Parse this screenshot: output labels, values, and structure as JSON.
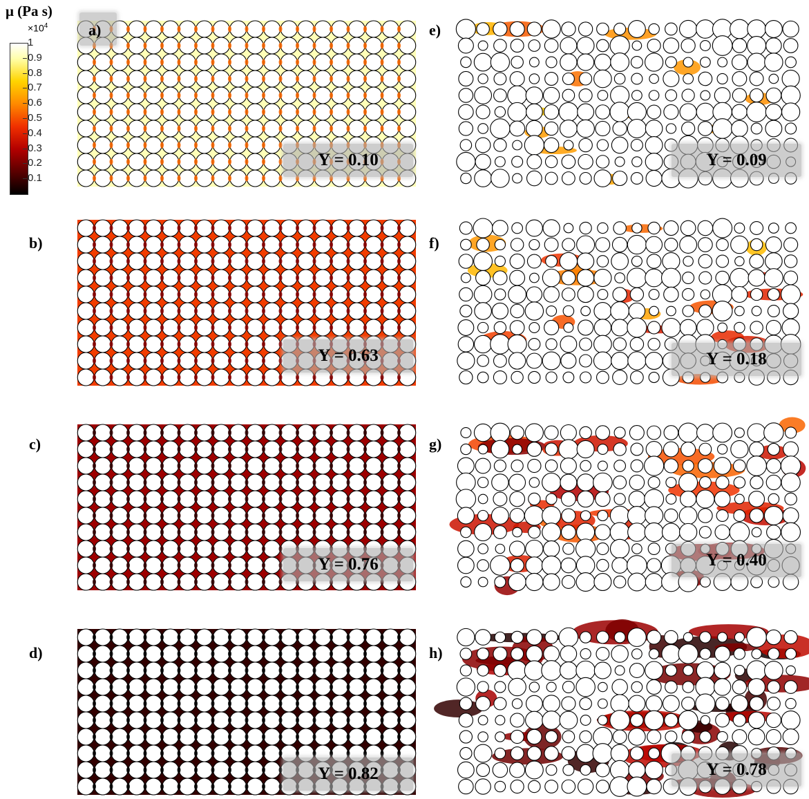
{
  "colorbar": {
    "title": "μ (Pa s)",
    "exponent_base": "×10",
    "exponent_power": "4",
    "ticks": [
      "1",
      "0.9",
      "0.8",
      "0.7",
      "0.6",
      "0.5",
      "0.4",
      "0.3",
      "0.2",
      "0.1"
    ],
    "colors": [
      "#000000",
      "#5a0000",
      "#b30000",
      "#f03000",
      "#ff8a00",
      "#ffd400",
      "#ffffaa",
      "#ffffff"
    ]
  },
  "panels": [
    {
      "label": "a)",
      "y_label": "Y = 0.10",
      "pattern": "uniform",
      "intensity": 0.12
    },
    {
      "label": "b)",
      "y_label": "Y = 0.63",
      "pattern": "uniform",
      "intensity": 0.55
    },
    {
      "label": "c)",
      "y_label": "Y = 0.76",
      "pattern": "uniform",
      "intensity": 0.75
    },
    {
      "label": "d)",
      "y_label": "Y = 0.82",
      "pattern": "uniform",
      "intensity": 0.92
    },
    {
      "label": "e)",
      "y_label": "Y = 0.09",
      "pattern": "random",
      "intensity": 0.15
    },
    {
      "label": "f)",
      "y_label": "Y = 0.18",
      "pattern": "random",
      "intensity": 0.3
    },
    {
      "label": "g)",
      "y_label": "Y = 0.40",
      "pattern": "random",
      "intensity": 0.55
    },
    {
      "label": "h)",
      "y_label": "Y = 0.78",
      "pattern": "random",
      "intensity": 0.88
    }
  ]
}
